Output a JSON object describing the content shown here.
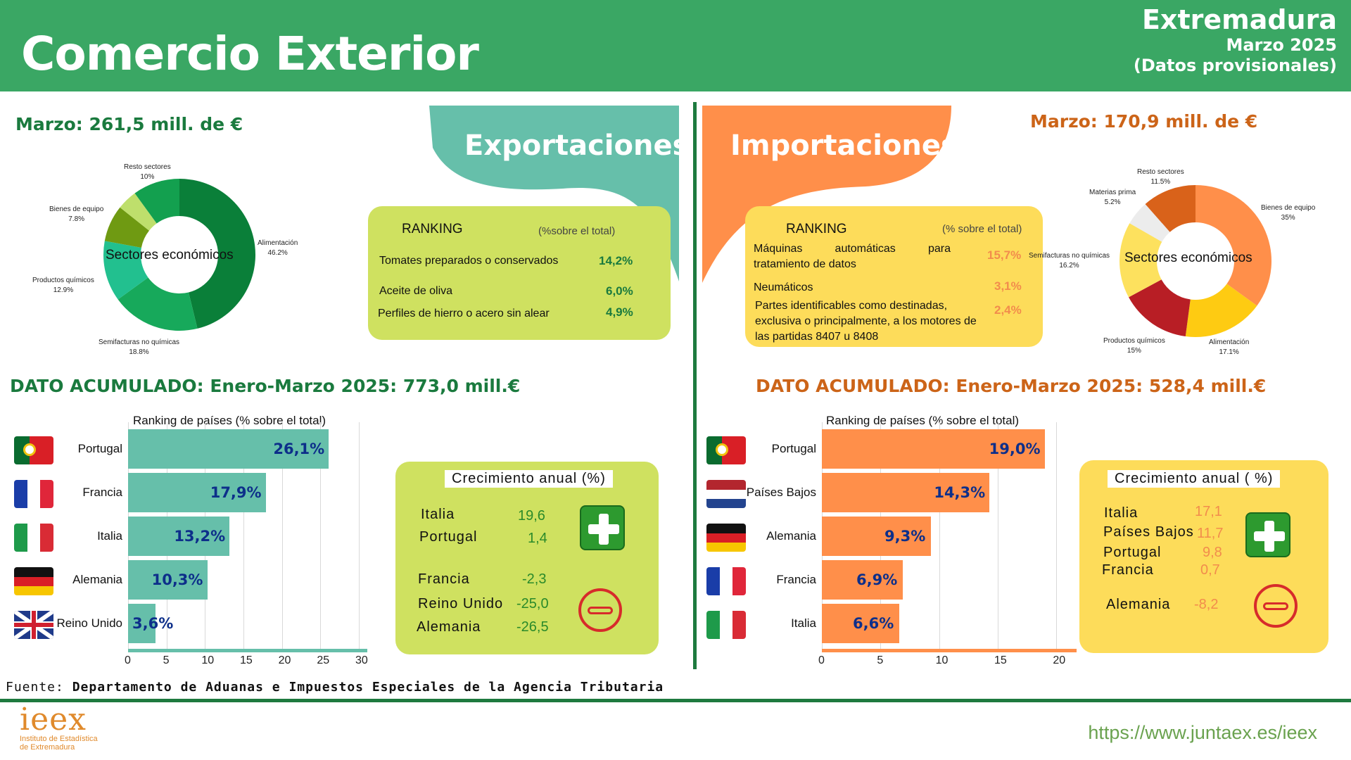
{
  "header": {
    "title": "Comercio Exterior",
    "region": "Extremadura",
    "period": "Marzo 2025",
    "note": "(Datos provisionales)"
  },
  "colors": {
    "green_band": "#3aa764",
    "dark_green": "#1a7a3e",
    "orange": "#cc6418",
    "teal": "#66bfaa",
    "export_box": "#cfe160",
    "import_box": "#fddc5a",
    "export_bar": "#66bfaa",
    "import_bar": "#ff8f4a"
  },
  "exports": {
    "band_title": "Exportaciones",
    "march_total": "Marzo: 261,5 mill. de €",
    "donut_center": "Sectores económicos",
    "sectors": [
      {
        "label": "Alimentación",
        "pct": "46.2%",
        "value": 46.2,
        "color": "#0a7f39"
      },
      {
        "label": "Semifacturas no químicas",
        "pct": "18.8%",
        "value": 18.8,
        "color": "#17a95b"
      },
      {
        "label": "Productos químicos",
        "pct": "12.9%",
        "value": 12.9,
        "color": "#22c08f"
      },
      {
        "label": "Bienes de equipo",
        "pct": "7.8%",
        "value": 7.8,
        "color": "#6f9a12"
      },
      {
        "label": "",
        "pct": "",
        "value": 4.3,
        "color": "#bedf6c"
      },
      {
        "label": "Resto sectores",
        "pct": "10%",
        "value": 10,
        "color": "#13a04f"
      }
    ],
    "ranking": {
      "title": "RANKING",
      "subtitle": "(%sobre el total)",
      "items": [
        {
          "name": "Tomates preparados o conservados",
          "pct": "14,2%"
        },
        {
          "name": "Aceite de oliva",
          "pct": "6,0%"
        },
        {
          "name": "Perfiles de hierro o acero sin alear",
          "pct": "4,9%"
        }
      ]
    },
    "accumulated": "DATO ACUMULADO: Enero-Marzo 2025: 773,0 mill.€",
    "countries_chart": {
      "title": "Ranking de países (% sobre el total)",
      "ticks": [
        "0",
        "5",
        "10",
        "15",
        "20",
        "25",
        "30"
      ],
      "max": 30,
      "items": [
        {
          "country": "Portugal",
          "value": 26.1,
          "label": "26,1%",
          "flag": "pt"
        },
        {
          "country": "Francia",
          "value": 17.9,
          "label": "17,9%",
          "flag": "fr"
        },
        {
          "country": "Italia",
          "value": 13.2,
          "label": "13,2%",
          "flag": "it"
        },
        {
          "country": "Alemania",
          "value": 10.3,
          "label": "10,3%",
          "flag": "de"
        },
        {
          "country": "Reino Unido",
          "value": 3.6,
          "label": "3,6%",
          "flag": "uk"
        }
      ]
    },
    "growth": {
      "title": "Crecimiento anual (%)",
      "positive": [
        {
          "name": "Italia",
          "val": "19,6"
        },
        {
          "name": "Portugal",
          "val": "1,4"
        }
      ],
      "negative": [
        {
          "name": "Francia",
          "val": "-2,3"
        },
        {
          "name": "Reino Unido",
          "val": "-25,0"
        },
        {
          "name": "Alemania",
          "val": "-26,5"
        }
      ]
    }
  },
  "imports": {
    "band_title": "Importaciones",
    "march_total": "Marzo: 170,9 mill. de €",
    "donut_center": "Sectores económicos",
    "sectors": [
      {
        "label": "Bienes de equipo",
        "pct": "35%",
        "value": 35,
        "color": "#ff8f4a"
      },
      {
        "label": "Alimentación",
        "pct": "17.1%",
        "value": 17.1,
        "color": "#fecb12"
      },
      {
        "label": "Productos químicos",
        "pct": "15%",
        "value": 15,
        "color": "#b81e25"
      },
      {
        "label": "Semifacturas no químicas",
        "pct": "16.2%",
        "value": 16.2,
        "color": "#fde15e"
      },
      {
        "label": "Materias prima",
        "pct": "5.2%",
        "value": 5.2,
        "color": "#ececec"
      },
      {
        "label": "Resto sectores",
        "pct": "11.5%",
        "value": 11.5,
        "color": "#d9621a"
      }
    ],
    "ranking": {
      "title": "RANKING",
      "subtitle": "(% sobre el total)",
      "items": [
        {
          "name": "Máquinas automáticas para tratamiento de datos",
          "pct": "15,7%"
        },
        {
          "name": "Neumáticos",
          "pct": "3,1%"
        },
        {
          "name": "Partes identificables como destinadas, exclusiva o principalmente, a los motores de las partidas 8407 u 8408",
          "pct": "2,4%"
        }
      ]
    },
    "accumulated": "DATO ACUMULADO: Enero-Marzo 2025: 528,4 mill.€",
    "countries_chart": {
      "title": "Ranking de países (% sobre el total)",
      "ticks": [
        "0",
        "5",
        "10",
        "15",
        "20"
      ],
      "max": 21,
      "items": [
        {
          "country": "Portugal",
          "value": 19.0,
          "label": "19,0%",
          "flag": "pt"
        },
        {
          "country": "Países Bajos",
          "value": 14.3,
          "label": "14,3%",
          "flag": "nl"
        },
        {
          "country": "Alemania",
          "value": 9.3,
          "label": "9,3%",
          "flag": "de"
        },
        {
          "country": "Francia",
          "value": 6.9,
          "label": "6,9%",
          "flag": "fr"
        },
        {
          "country": "Italia",
          "value": 6.6,
          "label": "6,6%",
          "flag": "it"
        }
      ]
    },
    "growth": {
      "title": "Crecimiento anual ( %)",
      "positive": [
        {
          "name": "Italia",
          "val": "17,1"
        },
        {
          "name": "Países Bajos",
          "val": "11,7"
        },
        {
          "name": "Portugal",
          "val": "9,8"
        },
        {
          "name": "Francia",
          "val": "0,7"
        }
      ],
      "negative": [
        {
          "name": "Alemania",
          "val": "-8,2"
        }
      ]
    }
  },
  "footer": {
    "source_label": "Fuente:",
    "source": "Departamento de Aduanas e Impuestos Especiales de la Agencia Tributaria",
    "url": "https://www.juntaex.es/ieex",
    "logo_text": "ieex",
    "logo_sub1": "Instituto de Estadística",
    "logo_sub2": "de Extremadura"
  }
}
